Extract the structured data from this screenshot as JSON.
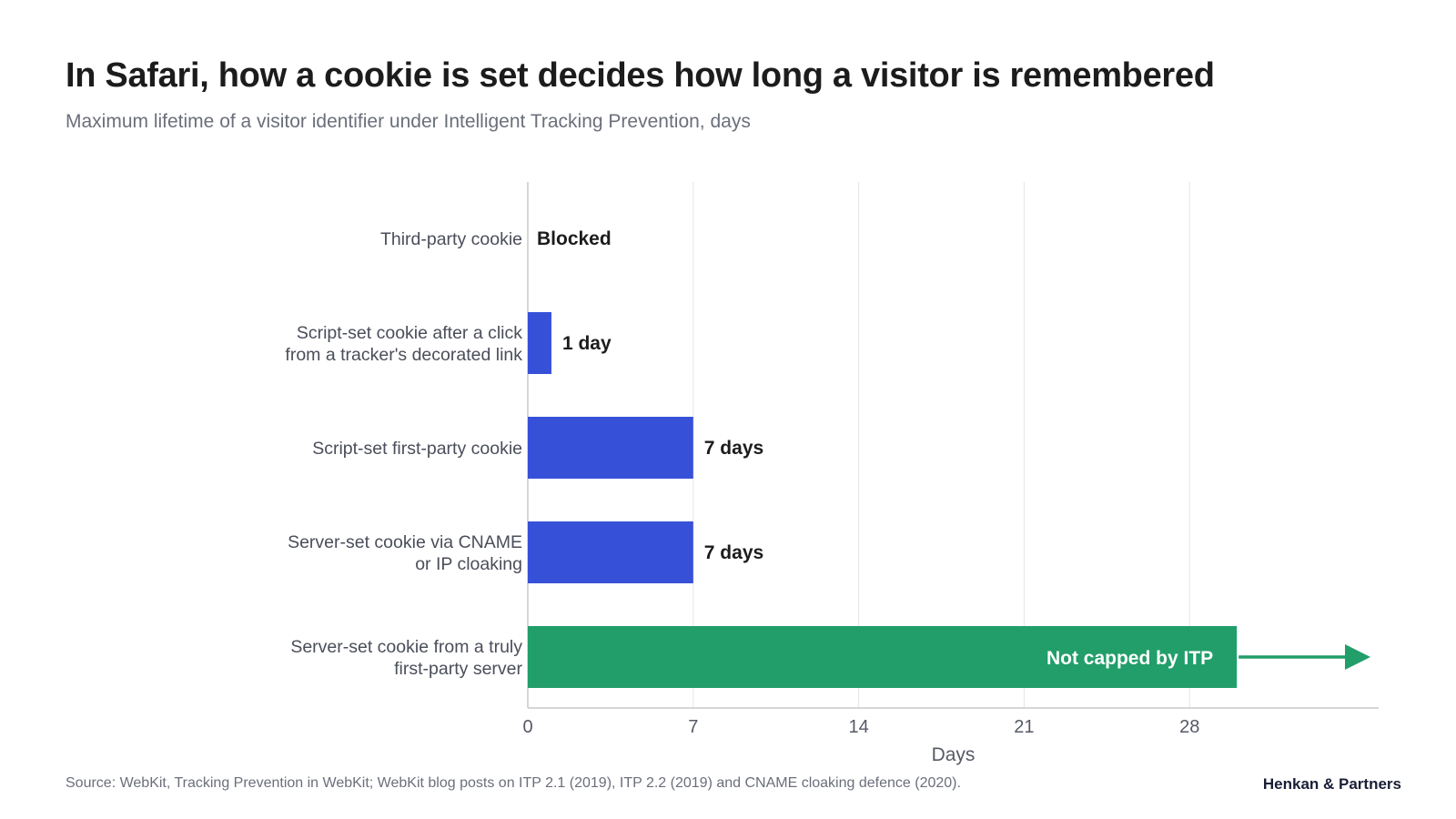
{
  "header": {
    "title": "In Safari, how a cookie is set decides how long a visitor is remembered",
    "subtitle": "Maximum lifetime of a visitor identifier under Intelligent Tracking Prevention, days"
  },
  "footer": {
    "source": "Source: WebKit, Tracking Prevention in WebKit; WebKit blog posts on ITP 2.1 (2019), ITP 2.2 (2019) and CNAME cloaking defence (2020).",
    "brand": "Henkan & Partners"
  },
  "colors": {
    "capped": "#3651d8",
    "uncapped": "#229e6a",
    "grid": "#e6e6e6",
    "axis": "#c9c9c9",
    "label_text": "#4a4e5a",
    "value_text": "#1c1c1c"
  },
  "chart_data": {
    "type": "bar",
    "orientation": "horizontal",
    "xlabel": "Days",
    "ylabel": "",
    "xlim": [
      0,
      36
    ],
    "xticks": [
      0,
      7,
      14,
      21,
      28
    ],
    "grid": "vertical",
    "categories": [
      [
        "Third-party cookie"
      ],
      [
        "Script-set cookie after a click",
        "from a tracker's decorated link"
      ],
      [
        "Script-set first-party cookie"
      ],
      [
        "Server-set cookie via CNAME",
        "or IP cloaking"
      ],
      [
        "Server-set cookie from a truly",
        "first-party server"
      ]
    ],
    "values": [
      0,
      1,
      7,
      7,
      30
    ],
    "value_labels": [
      "Blocked",
      "1 day",
      "7 days",
      "7 days",
      "Not capped by ITP"
    ],
    "capped": [
      true,
      true,
      true,
      true,
      false
    ],
    "annotation": "arrow continuing right beyond the bar for the uncapped category"
  }
}
